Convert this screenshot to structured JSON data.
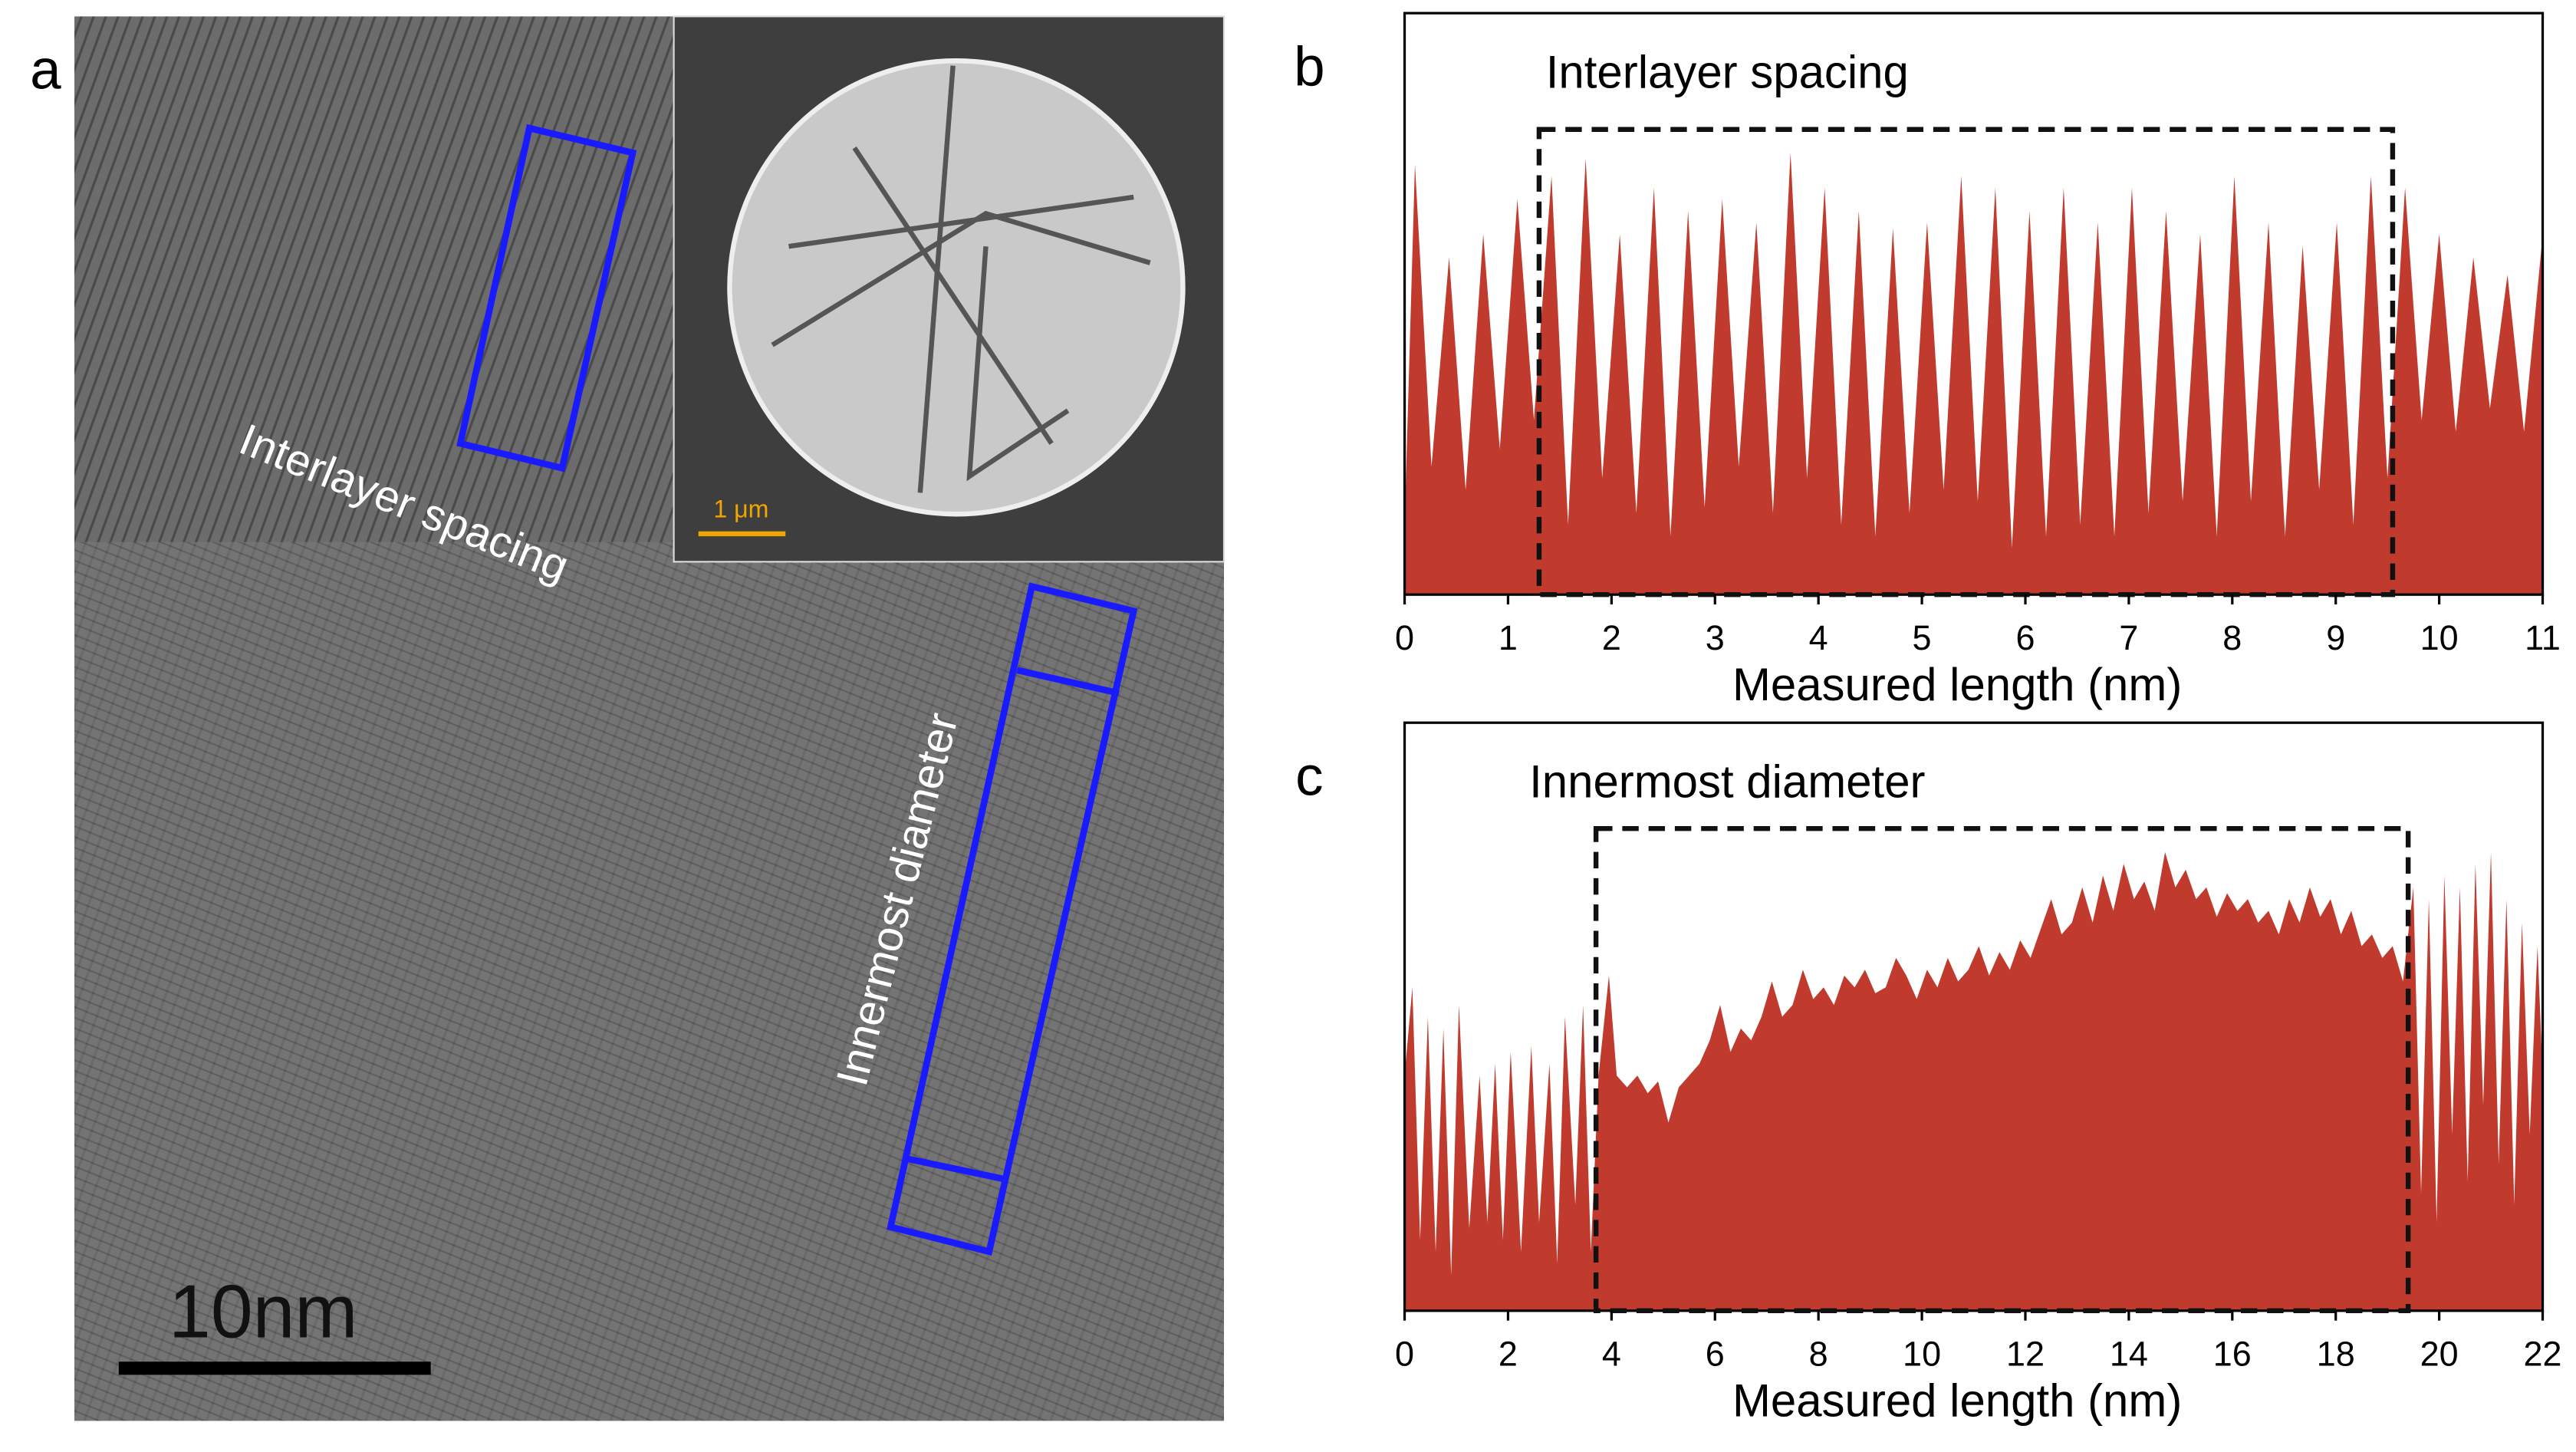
{
  "image_panel": {
    "panel_label": "a",
    "scale_bar": "10nm",
    "inset_scale_bar": "1 μm",
    "annotations": [
      "Interlayer spacing",
      "Innermost diameter"
    ]
  },
  "chart_data": [
    {
      "type": "area",
      "panel_label": "b",
      "title": "Interlayer spacing",
      "x_label": "Measured length (nm)",
      "color": "#c13a2e",
      "xlim": [
        0,
        11
      ],
      "ylim": [
        0,
        100
      ],
      "xticks": [
        0,
        1,
        2,
        3,
        4,
        5,
        6,
        7,
        8,
        9,
        10,
        11
      ],
      "highlight": {
        "x": [
          1.3,
          9.55
        ],
        "y": [
          0,
          80
        ]
      },
      "x": [
        0,
        0.1,
        0.26,
        0.43,
        0.59,
        0.76,
        0.92,
        1.09,
        1.25,
        1.42,
        1.58,
        1.75,
        1.91,
        2.08,
        2.24,
        2.41,
        2.57,
        2.74,
        2.9,
        3.07,
        3.23,
        3.4,
        3.56,
        3.73,
        3.89,
        4.06,
        4.22,
        4.39,
        4.55,
        4.72,
        4.88,
        5.05,
        5.21,
        5.38,
        5.54,
        5.71,
        5.87,
        6.04,
        6.2,
        6.37,
        6.53,
        6.7,
        6.86,
        7.03,
        7.19,
        7.36,
        7.52,
        7.69,
        7.85,
        8.02,
        8.18,
        8.35,
        8.51,
        8.68,
        8.84,
        9.01,
        9.17,
        9.34,
        9.5,
        9.67,
        9.83,
        10.0,
        10.16,
        10.33,
        10.49,
        10.66,
        10.82,
        10.99,
        11
      ],
      "values": [
        12,
        74,
        22,
        58,
        18,
        62,
        25,
        68,
        30,
        72,
        12,
        75,
        20,
        62,
        14,
        70,
        10,
        66,
        15,
        68,
        22,
        64,
        14,
        76,
        20,
        70,
        12,
        66,
        10,
        63,
        14,
        64,
        18,
        72,
        16,
        70,
        8,
        66,
        10,
        70,
        12,
        64,
        10,
        70,
        14,
        66,
        16,
        62,
        10,
        72,
        16,
        64,
        10,
        60,
        18,
        64,
        12,
        72,
        20,
        70,
        30,
        62,
        28,
        58,
        32,
        55,
        28,
        60,
        30
      ]
    },
    {
      "type": "area",
      "panel_label": "c",
      "title": "Innermost diameter",
      "x_label": "Measured length (nm)",
      "color": "#c13a2e",
      "xlim": [
        0,
        22
      ],
      "ylim": [
        0,
        100
      ],
      "xticks": [
        0,
        2,
        4,
        6,
        8,
        10,
        12,
        14,
        16,
        18,
        20,
        22
      ],
      "highlight": {
        "x": [
          3.7,
          19.4
        ],
        "y": [
          0,
          82
        ]
      },
      "x": [
        0,
        0.15,
        0.3,
        0.45,
        0.6,
        0.75,
        0.9,
        1.05,
        1.25,
        1.45,
        1.6,
        1.75,
        1.9,
        2.05,
        2.25,
        2.45,
        2.6,
        2.8,
        2.95,
        3.1,
        3.3,
        3.45,
        3.6,
        3.75,
        3.95,
        4.1,
        4.3,
        4.5,
        4.7,
        4.9,
        5.1,
        5.3,
        5.5,
        5.7,
        5.9,
        6.1,
        6.3,
        6.5,
        6.7,
        6.9,
        7.1,
        7.3,
        7.5,
        7.7,
        7.9,
        8.1,
        8.3,
        8.5,
        8.7,
        8.9,
        9.1,
        9.3,
        9.5,
        9.7,
        9.9,
        10.1,
        10.3,
        10.5,
        10.7,
        10.9,
        11.1,
        11.3,
        11.5,
        11.7,
        11.9,
        12.1,
        12.3,
        12.5,
        12.7,
        12.9,
        13.1,
        13.3,
        13.5,
        13.7,
        13.9,
        14.1,
        14.3,
        14.5,
        14.7,
        14.9,
        15.1,
        15.3,
        15.5,
        15.7,
        15.9,
        16.1,
        16.3,
        16.5,
        16.7,
        16.9,
        17.1,
        17.3,
        17.5,
        17.7,
        17.9,
        18.1,
        18.3,
        18.5,
        18.7,
        18.9,
        19.1,
        19.3,
        19.5,
        19.65,
        19.8,
        19.95,
        20.1,
        20.25,
        20.4,
        20.55,
        20.7,
        20.85,
        21.0,
        21.15,
        21.3,
        21.45,
        21.6,
        21.75,
        21.9,
        22.0
      ],
      "values": [
        40,
        55,
        12,
        50,
        10,
        48,
        6,
        52,
        14,
        40,
        15,
        42,
        12,
        44,
        10,
        45,
        15,
        42,
        8,
        50,
        18,
        52,
        10,
        40,
        57,
        40,
        38,
        40,
        37,
        39,
        32,
        38,
        40,
        42,
        46,
        52,
        44,
        48,
        46,
        50,
        56,
        50,
        52,
        58,
        53,
        55,
        52,
        57,
        55,
        58,
        54,
        55,
        60,
        57,
        53,
        58,
        55,
        60,
        56,
        58,
        62,
        57,
        61,
        58,
        63,
        60,
        65,
        70,
        64,
        66,
        72,
        66,
        74,
        68,
        76,
        70,
        73,
        68,
        78,
        72,
        75,
        70,
        72,
        67,
        71,
        68,
        70,
        66,
        68,
        64,
        70,
        66,
        72,
        67,
        70,
        64,
        68,
        62,
        64,
        60,
        62,
        56,
        72,
        20,
        70,
        15,
        74,
        30,
        72,
        22,
        76,
        35,
        78,
        25,
        70,
        18,
        66,
        30,
        62,
        40
      ]
    }
  ]
}
